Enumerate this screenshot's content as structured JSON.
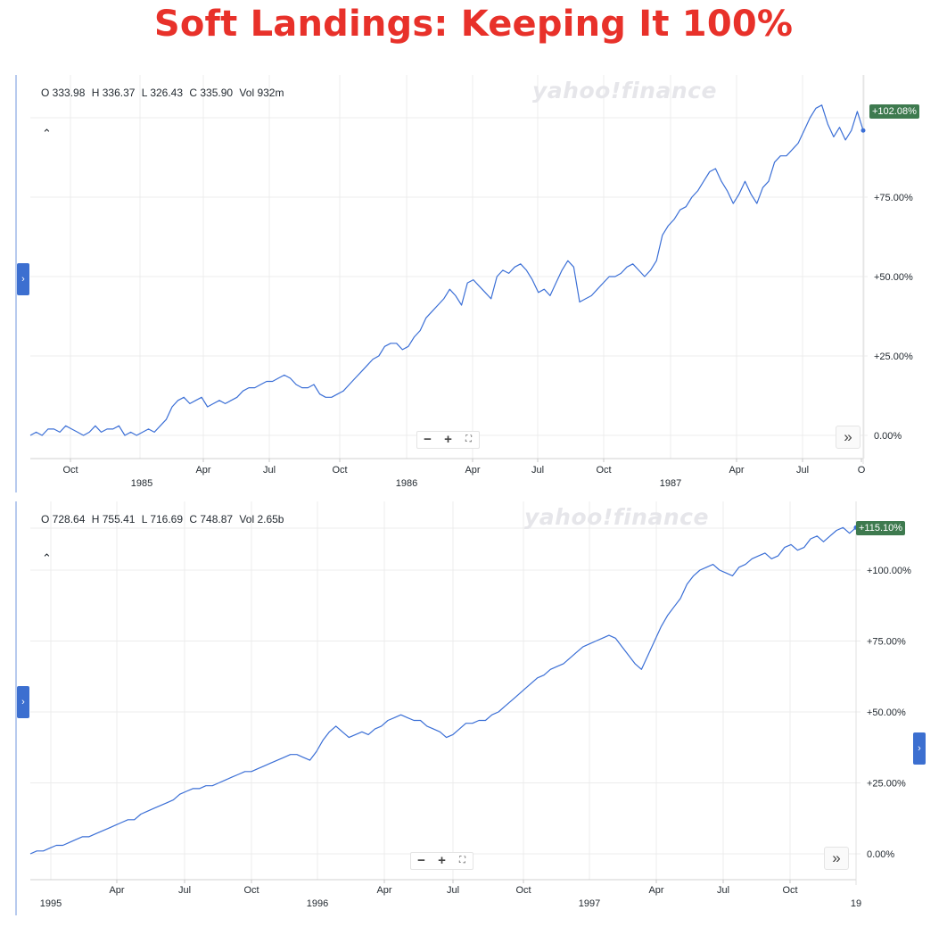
{
  "title": "Soft Landings: Keeping It 100%",
  "controls": {
    "zoom_out": "−",
    "zoom_in": "+",
    "fullscreen": "⛶",
    "skip": "»",
    "collapse": "⌃",
    "sidebar_toggle": "›"
  },
  "watermark": "yahoo!finance",
  "colors": {
    "line": "#3b6fd6",
    "badge": "#3e7a4f",
    "title": "#e8312a",
    "tab": "#3c6fd0"
  },
  "charts": [
    {
      "ohlc": {
        "open": "O 333.98",
        "high": "H 336.37",
        "low": "L 326.43",
        "close": "C 335.90",
        "vol": "Vol 932m"
      },
      "last_badge": "+102.08%",
      "yticks": [
        "+75.00%",
        "+50.00%",
        "+25.00%",
        "0.00%"
      ],
      "months": [
        "Oct",
        "Apr",
        "Jul",
        "Oct",
        "Apr",
        "Jul",
        "Oct",
        "Apr",
        "Jul",
        "O"
      ],
      "years": [
        "1985",
        "1986",
        "1987"
      ]
    },
    {
      "ohlc": {
        "open": "O 728.64",
        "high": "H 755.41",
        "low": "L 716.69",
        "close": "C 748.87",
        "vol": "Vol 2.65b"
      },
      "last_badge": "+115.10%",
      "yticks": [
        "+100.00%",
        "+75.00%",
        "+50.00%",
        "+25.00%",
        "0.00%"
      ],
      "months": [
        "Apr",
        "Jul",
        "Oct",
        "Apr",
        "Jul",
        "Oct",
        "Apr",
        "Jul",
        "Oct"
      ],
      "years": [
        "1995",
        "1996",
        "1997",
        "19"
      ]
    }
  ],
  "chart_data": [
    {
      "type": "line",
      "ylim": [
        -7,
        108
      ],
      "x_start": "1984-08",
      "x_end": "1987-10",
      "series": [
        {
          "values": [
            0,
            1,
            0,
            2,
            2,
            1,
            3,
            2,
            1,
            0,
            1,
            3,
            1,
            2,
            2,
            3,
            0,
            1,
            0,
            1,
            2,
            1,
            3,
            5,
            9,
            11,
            12,
            10,
            11,
            12,
            9,
            10,
            11,
            10,
            11,
            12,
            14,
            15,
            15,
            16,
            17,
            17,
            18,
            19,
            18,
            16,
            15,
            15,
            16,
            13,
            12,
            12,
            13,
            14,
            16,
            18,
            20,
            22,
            24,
            25,
            28,
            29,
            29,
            27,
            28,
            31,
            33,
            37,
            39,
            41,
            43,
            46,
            44,
            41,
            48,
            49,
            47,
            45,
            43,
            50,
            52,
            51,
            53,
            54,
            52,
            49,
            45,
            46,
            44,
            48,
            52,
            55,
            53,
            42,
            43,
            44,
            46,
            48,
            50,
            50,
            51,
            53,
            54,
            52,
            50,
            52,
            55,
            63,
            66,
            68,
            71,
            72,
            75,
            77,
            80,
            83,
            84,
            80,
            77,
            73,
            76,
            80,
            76,
            73,
            78,
            80,
            86,
            88,
            88,
            90,
            92,
            96,
            100,
            103,
            104,
            98,
            94,
            97,
            93,
            96,
            102,
            96
          ]
        }
      ]
    },
    {
      "type": "line",
      "ylim": [
        -10,
        120
      ],
      "x_start": "1994-12",
      "x_end": "1998-01",
      "series": [
        {
          "values": [
            0,
            1,
            1,
            2,
            3,
            3,
            4,
            5,
            6,
            6,
            7,
            8,
            9,
            10,
            11,
            12,
            12,
            14,
            15,
            16,
            17,
            18,
            19,
            21,
            22,
            23,
            23,
            24,
            24,
            25,
            26,
            27,
            28,
            29,
            29,
            30,
            31,
            32,
            33,
            34,
            35,
            35,
            34,
            33,
            36,
            40,
            43,
            45,
            43,
            41,
            42,
            43,
            42,
            44,
            45,
            47,
            48,
            49,
            48,
            47,
            47,
            45,
            44,
            43,
            41,
            42,
            44,
            46,
            46,
            47,
            47,
            49,
            50,
            52,
            54,
            56,
            58,
            60,
            62,
            63,
            65,
            66,
            67,
            69,
            71,
            73,
            74,
            75,
            76,
            77,
            76,
            73,
            70,
            67,
            65,
            70,
            75,
            80,
            84,
            87,
            90,
            95,
            98,
            100,
            101,
            102,
            100,
            99,
            98,
            101,
            102,
            104,
            105,
            106,
            104,
            105,
            108,
            109,
            107,
            108,
            111,
            112,
            110,
            112,
            114,
            115,
            113,
            115
          ]
        }
      ]
    }
  ]
}
